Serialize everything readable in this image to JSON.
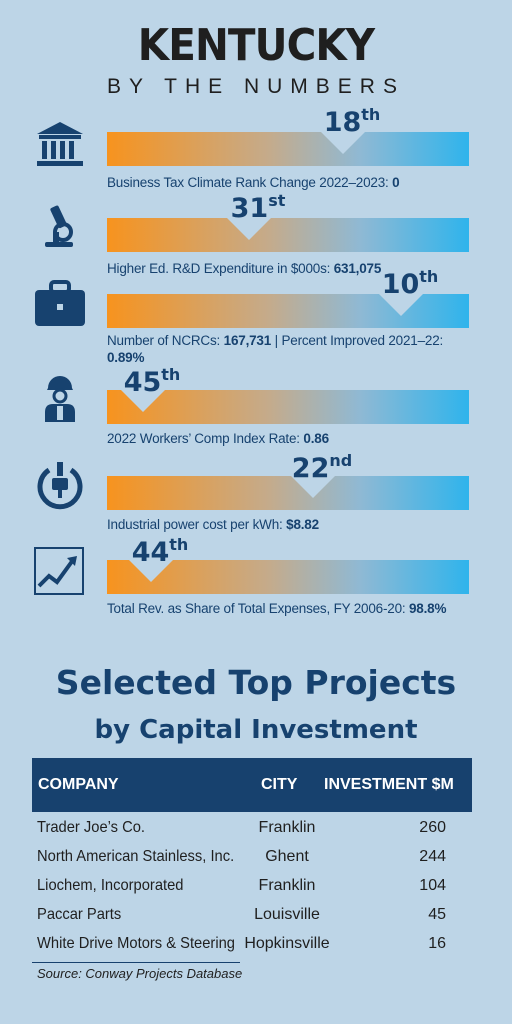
{
  "title": "KENTUCKY",
  "subtitle": "BY THE NUMBERS",
  "metrics": [
    {
      "icon": "bank-icon",
      "rank_num": "18",
      "rank_suffix": "th",
      "label": "Business Tax Climate Rank Change 2022–2023:",
      "value": "0"
    },
    {
      "icon": "microscope-icon",
      "rank_num": "31",
      "rank_suffix": "st",
      "label": "Higher Ed. R&D Expenditure in $000s:",
      "value": "631,075"
    },
    {
      "icon": "briefcase-icon",
      "rank_num": "10",
      "rank_suffix": "th",
      "label": "Number of NCRCs:",
      "value": "167,731",
      "label2": " | Percent Improved 2021–22:",
      "value2": "0.89%"
    },
    {
      "icon": "worker-icon",
      "rank_num": "45",
      "rank_suffix": "th",
      "label": "2022 Workers’ Comp Index Rate:",
      "value": "0.86"
    },
    {
      "icon": "power-plug-icon",
      "rank_num": "22",
      "rank_suffix": "nd",
      "label": "Industrial power cost per kWh:",
      "value": "$8.82"
    },
    {
      "icon": "trend-chart-icon",
      "rank_num": "44",
      "rank_suffix": "th",
      "label": "Total Rev. as Share of Total Expenses, FY 2006-20:",
      "value": "98.8%"
    }
  ],
  "projects": {
    "title_line1": "Selected Top Projects",
    "title_line2": "by Capital Investment",
    "headers": {
      "company": "COMPANY",
      "city": "CITY",
      "investment": "INVESTMENT $M"
    },
    "rows": [
      {
        "company": "Trader Joe’s Co.",
        "city": "Franklin",
        "investment": "260"
      },
      {
        "company": "North American Stainless, Inc.",
        "city": "Ghent",
        "investment": "244"
      },
      {
        "company": "Liochem, Incorporated",
        "city": "Franklin",
        "investment": "104"
      },
      {
        "company": "Paccar Parts",
        "city": "Louisville",
        "investment": "45"
      },
      {
        "company": "White Drive Motors & Steering",
        "city": "Hopkinsville",
        "investment": "16"
      }
    ],
    "source": "Source: Conway Projects Database"
  },
  "colors": {
    "background": "#bdd5e7",
    "navy": "#17426f",
    "orange": "#f7931e",
    "blue": "#2fb4ec"
  }
}
